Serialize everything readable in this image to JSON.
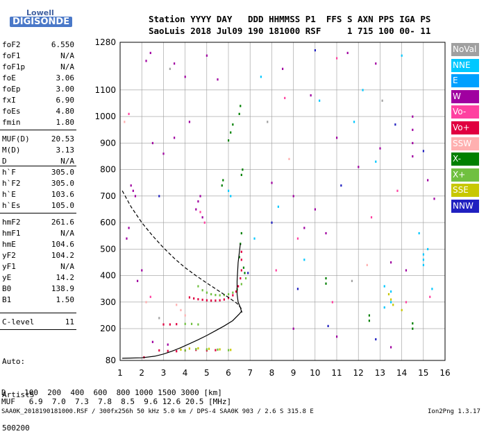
{
  "logo": {
    "line1": "Lowell",
    "line2": "DIGISONDE"
  },
  "header": {
    "labels": "Station YYYY DAY   DDD HHMMSS P1  FFS S AXN PPS IGA PS",
    "values": "SaoLuis 2018 Jul09 190 181000 RSF     1 715 100 00- 11"
  },
  "params": [
    {
      "label": "foF2",
      "value": "6.550"
    },
    {
      "label": "foF1",
      "value": "N/A"
    },
    {
      "label": "foF1p",
      "value": "N/A"
    },
    {
      "label": "foE",
      "value": "3.06"
    },
    {
      "label": "foEp",
      "value": "3.00"
    },
    {
      "label": "fxI",
      "value": "6.90"
    },
    {
      "label": "foEs",
      "value": "4.80"
    },
    {
      "label": "fmin",
      "value": "1.80"
    },
    {
      "label": "MUF(D)",
      "value": "20.53"
    },
    {
      "label": "M(D)",
      "value": "3.13"
    },
    {
      "label": "D",
      "value": "N/A"
    },
    {
      "label": "h`F",
      "value": "305.0"
    },
    {
      "label": "h`F2",
      "value": "305.0"
    },
    {
      "label": "h`E",
      "value": "103.6"
    },
    {
      "label": "h`Es",
      "value": "105.0"
    },
    {
      "label": "hmF2",
      "value": "261.6"
    },
    {
      "label": "hmF1",
      "value": "N/A"
    },
    {
      "label": "hmE",
      "value": "104.6"
    },
    {
      "label": "yF2",
      "value": "104.2"
    },
    {
      "label": "yF1",
      "value": "N/A"
    },
    {
      "label": "yE",
      "value": "14.2"
    },
    {
      "label": "B0",
      "value": "138.9"
    },
    {
      "label": "B1",
      "value": "1.50"
    },
    {
      "label": "C-level",
      "value": "11"
    }
  ],
  "auto": [
    "Auto:",
    "Artist5",
    "500200"
  ],
  "footer": {
    "d_row": "D    100  200  400  600  800 1000 1500 3000 [km]",
    "muf_row": "MUF   6.9  7.0  7.3  7.8  8.5  9.6 12.6 20.5 [MHz]",
    "file_info": "SAA0K_2018190181000.RSF / 300fx256h 50 kHz 5.0 km / DPS-4 SAA0K 903 / 2.6 S 315.8 E",
    "version": "Ion2Png 1.3.17"
  },
  "legend": [
    {
      "label": "NoVal",
      "color": "#a0a0a0"
    },
    {
      "label": "NNE",
      "color": "#00c8ff"
    },
    {
      "label": "E",
      "color": "#00a0ff"
    },
    {
      "label": "W",
      "color": "#a000a0"
    },
    {
      "label": "Vo-",
      "color": "#ff40a0"
    },
    {
      "label": "Vo+",
      "color": "#e00040"
    },
    {
      "label": "SSW",
      "color": "#ffb0b0"
    },
    {
      "label": "X-",
      "color": "#008000"
    },
    {
      "label": "X+",
      "color": "#70c040"
    },
    {
      "label": "SSE",
      "color": "#c8c800"
    },
    {
      "label": "NNW",
      "color": "#2020c0"
    }
  ],
  "chart_data": {
    "type": "scatter",
    "xlim": [
      1,
      16
    ],
    "ylim": [
      80,
      1280
    ],
    "x_ticks": [
      1,
      2,
      3,
      4,
      5,
      6,
      7,
      8,
      9,
      10,
      11,
      12,
      13,
      14,
      15,
      16
    ],
    "y_ticks": [
      80,
      200,
      300,
      400,
      500,
      600,
      700,
      800,
      900,
      1000,
      1100,
      1280
    ],
    "grid": true,
    "series": [
      {
        "name": "Vo+",
        "color": "#e00040",
        "style": "points",
        "points": [
          [
            4.2,
            318
          ],
          [
            4.4,
            314
          ],
          [
            4.6,
            311
          ],
          [
            4.8,
            309
          ],
          [
            5.0,
            307
          ],
          [
            5.2,
            306
          ],
          [
            5.4,
            306
          ],
          [
            5.6,
            307
          ],
          [
            5.8,
            310
          ],
          [
            6.0,
            316
          ],
          [
            6.2,
            326
          ],
          [
            6.35,
            340
          ],
          [
            6.45,
            360
          ],
          [
            6.55,
            390
          ],
          [
            6.6,
            420
          ],
          [
            6.6,
            460
          ],
          [
            6.6,
            490
          ],
          [
            3.0,
            216
          ],
          [
            3.3,
            216
          ],
          [
            3.6,
            217
          ],
          [
            2.8,
            118
          ],
          [
            3.2,
            116
          ],
          [
            3.6,
            115
          ],
          [
            4.0,
            118
          ],
          [
            4.5,
            120
          ],
          [
            5.0,
            118
          ],
          [
            5.4,
            119
          ],
          [
            2.1,
            92
          ]
        ]
      },
      {
        "name": "X+",
        "color": "#70c040",
        "style": "points",
        "points": [
          [
            4.6,
            360
          ],
          [
            4.8,
            345
          ],
          [
            5.0,
            336
          ],
          [
            5.2,
            330
          ],
          [
            5.4,
            327
          ],
          [
            5.6,
            326
          ],
          [
            5.8,
            327
          ],
          [
            6.0,
            330
          ],
          [
            6.2,
            336
          ],
          [
            6.4,
            348
          ],
          [
            6.6,
            368
          ],
          [
            6.8,
            390
          ],
          [
            4.0,
            218
          ],
          [
            4.3,
            218
          ],
          [
            4.6,
            216
          ],
          [
            4.0,
            118
          ],
          [
            4.5,
            123
          ],
          [
            5.0,
            122
          ],
          [
            5.5,
            121
          ],
          [
            6.0,
            119
          ]
        ]
      },
      {
        "name": "X-",
        "color": "#008000",
        "style": "points",
        "points": [
          [
            6.5,
            470
          ],
          [
            6.55,
            520
          ],
          [
            6.6,
            560
          ],
          [
            6.7,
            430
          ],
          [
            6.75,
            410
          ],
          [
            5.7,
            740
          ],
          [
            5.75,
            760
          ],
          [
            6.6,
            780
          ],
          [
            6.65,
            800
          ],
          [
            6.0,
            910
          ],
          [
            6.1,
            940
          ],
          [
            6.2,
            970
          ],
          [
            6.5,
            1010
          ],
          [
            6.55,
            1040
          ],
          [
            10.5,
            370
          ],
          [
            10.5,
            390
          ],
          [
            12.5,
            230
          ],
          [
            12.5,
            250
          ],
          [
            14.5,
            200
          ],
          [
            14.5,
            220
          ]
        ]
      },
      {
        "name": "W",
        "color": "#a000a0",
        "style": "points",
        "points": [
          [
            2.2,
            1210
          ],
          [
            2.4,
            1240
          ],
          [
            3.5,
            1200
          ],
          [
            4.0,
            1150
          ],
          [
            5.0,
            1230
          ],
          [
            5.5,
            1140
          ],
          [
            4.5,
            650
          ],
          [
            4.6,
            680
          ],
          [
            4.7,
            700
          ],
          [
            4.8,
            620
          ],
          [
            2.5,
            900
          ],
          [
            3.0,
            860
          ],
          [
            3.5,
            920
          ],
          [
            4.2,
            980
          ],
          [
            1.5,
            740
          ],
          [
            1.6,
            720
          ],
          [
            1.7,
            700
          ],
          [
            1.3,
            540
          ],
          [
            1.4,
            580
          ],
          [
            2.0,
            420
          ],
          [
            1.8,
            380
          ],
          [
            8.0,
            750
          ],
          [
            9.0,
            700
          ],
          [
            10.0,
            650
          ],
          [
            11.0,
            920
          ],
          [
            12.0,
            810
          ],
          [
            13.0,
            880
          ],
          [
            14.5,
            1000
          ],
          [
            14.5,
            950
          ],
          [
            14.5,
            900
          ],
          [
            14.5,
            850
          ],
          [
            15.2,
            760
          ],
          [
            15.5,
            690
          ],
          [
            9.5,
            580
          ],
          [
            10.5,
            560
          ],
          [
            13.5,
            450
          ],
          [
            14.2,
            420
          ],
          [
            8.5,
            1180
          ],
          [
            9.8,
            1080
          ],
          [
            11.5,
            1240
          ],
          [
            12.8,
            1200
          ],
          [
            2.5,
            150
          ],
          [
            3.2,
            140
          ],
          [
            9.0,
            200
          ],
          [
            11.0,
            170
          ],
          [
            13.5,
            130
          ]
        ]
      },
      {
        "name": "NNE",
        "color": "#00c8ff",
        "style": "points",
        "points": [
          [
            15.0,
            480
          ],
          [
            15.0,
            460
          ],
          [
            15.0,
            440
          ],
          [
            15.2,
            500
          ],
          [
            13.2,
            360
          ],
          [
            13.5,
            340
          ],
          [
            13.5,
            300
          ],
          [
            14.0,
            1230
          ],
          [
            12.8,
            830
          ],
          [
            6.0,
            720
          ],
          [
            6.1,
            700
          ],
          [
            10.2,
            1060
          ],
          [
            11.8,
            980
          ],
          [
            9.5,
            460
          ],
          [
            8.3,
            660
          ],
          [
            7.5,
            1150
          ],
          [
            7.2,
            540
          ],
          [
            12.2,
            1100
          ],
          [
            14.8,
            560
          ],
          [
            13.2,
            280
          ],
          [
            15.4,
            350
          ]
        ]
      },
      {
        "name": "Vo-",
        "color": "#ff40a0",
        "style": "points",
        "points": [
          [
            11.0,
            1220
          ],
          [
            8.6,
            1070
          ],
          [
            13.8,
            720
          ],
          [
            12.6,
            620
          ],
          [
            8.2,
            420
          ],
          [
            10.8,
            300
          ],
          [
            9.2,
            540
          ],
          [
            1.4,
            1010
          ],
          [
            15.3,
            320
          ],
          [
            14.2,
            300
          ],
          [
            2.4,
            320
          ],
          [
            4.7,
            640
          ],
          [
            4.9,
            600
          ]
        ]
      },
      {
        "name": "SSE",
        "color": "#c8c800",
        "style": "points",
        "points": [
          [
            13.4,
            330
          ],
          [
            13.5,
            310
          ],
          [
            13.6,
            290
          ],
          [
            14.0,
            270
          ],
          [
            3.8,
            121
          ],
          [
            4.2,
            125
          ],
          [
            4.6,
            126
          ],
          [
            5.1,
            124
          ],
          [
            5.6,
            122
          ],
          [
            6.1,
            120
          ]
        ]
      },
      {
        "name": "SSW",
        "color": "#ffb0b0",
        "style": "points",
        "points": [
          [
            3.6,
            290
          ],
          [
            3.8,
            270
          ],
          [
            4.0,
            250
          ],
          [
            2.2,
            300
          ],
          [
            8.8,
            840
          ],
          [
            12.4,
            440
          ],
          [
            1.2,
            980
          ]
        ]
      },
      {
        "name": "NNW",
        "color": "#2020c0",
        "style": "points",
        "points": [
          [
            8.0,
            600
          ],
          [
            9.2,
            350
          ],
          [
            10.0,
            1250
          ],
          [
            11.2,
            740
          ],
          [
            12.8,
            160
          ],
          [
            13.7,
            970
          ],
          [
            6.9,
            410
          ],
          [
            15.0,
            870
          ],
          [
            10.6,
            210
          ],
          [
            2.8,
            700
          ]
        ]
      },
      {
        "name": "NoVal",
        "color": "#a0a0a0",
        "style": "points",
        "points": [
          [
            3.3,
            1180
          ],
          [
            2.8,
            240
          ],
          [
            7.8,
            980
          ],
          [
            11.7,
            380
          ],
          [
            13.1,
            1060
          ]
        ]
      },
      {
        "name": "",
        "color": "#000000",
        "style": "solid",
        "points": [
          [
            1.1,
            88
          ],
          [
            2.0,
            90
          ],
          [
            2.6,
            96
          ],
          [
            3.0,
            104
          ],
          [
            3.4,
            115
          ],
          [
            3.8,
            128
          ],
          [
            4.2,
            143
          ],
          [
            4.6,
            158
          ],
          [
            5.0,
            174
          ],
          [
            5.4,
            192
          ],
          [
            5.8,
            210
          ],
          [
            6.2,
            230
          ],
          [
            6.5,
            255
          ],
          [
            6.6,
            265
          ],
          [
            6.55,
            280
          ],
          [
            6.45,
            300
          ],
          [
            6.4,
            330
          ],
          [
            6.4,
            380
          ],
          [
            6.45,
            450
          ],
          [
            6.55,
            520
          ]
        ]
      },
      {
        "name": "",
        "color": "#000000",
        "style": "dashed",
        "points": [
          [
            1.1,
            720
          ],
          [
            1.5,
            660
          ],
          [
            2.0,
            600
          ],
          [
            2.5,
            550
          ],
          [
            3.0,
            505
          ],
          [
            3.5,
            465
          ],
          [
            4.0,
            430
          ],
          [
            4.5,
            400
          ],
          [
            5.0,
            372
          ],
          [
            5.5,
            345
          ],
          [
            6.0,
            318
          ],
          [
            6.4,
            295
          ],
          [
            6.6,
            275
          ],
          [
            6.62,
            260
          ]
        ]
      }
    ]
  }
}
